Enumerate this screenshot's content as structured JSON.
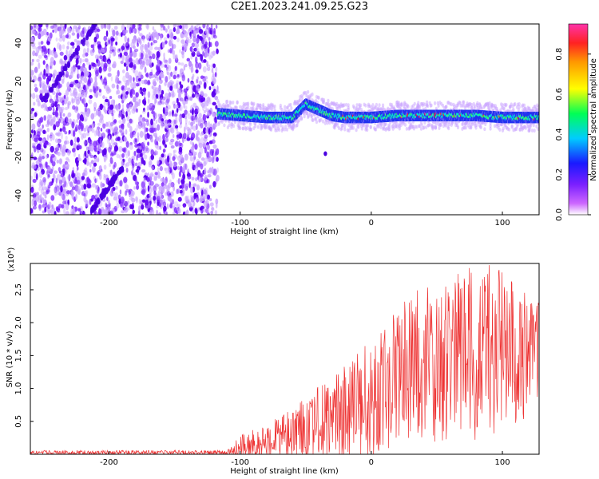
{
  "title": "C2E1.2023.241.09.25.G23",
  "colors": {
    "snr_line": "#ee3333",
    "spectrogram_cloud": "#7a1fff",
    "spectrogram_core": "#2233ee",
    "spectrogram_peak": "#ff2222",
    "axis": "#000000",
    "background": "#ffffff"
  },
  "chart_data": [
    {
      "type": "heatmap",
      "title": "C2E1.2023.241.09.25.G23",
      "xlabel": "Height of straight line (km)",
      "ylabel": "Frequency (Hz)",
      "xlim": [
        -260,
        128
      ],
      "ylim": [
        -50,
        50
      ],
      "x_ticks": [
        -200,
        -100,
        0,
        100
      ],
      "y_ticks": [
        -40,
        -20,
        0,
        20,
        40
      ],
      "colorbar": {
        "label": "Normalized spectral amplitude",
        "range": [
          0,
          0.95
        ],
        "ticks": [
          0.0,
          0.2,
          0.4,
          0.6,
          0.8
        ],
        "colormap": "rainbow (violet-blue-cyan-green-yellow-orange-red-pink)"
      },
      "features": {
        "noise_region_x": [
          -260,
          -117
        ],
        "signal_band_x": [
          -117,
          128
        ],
        "signal_center_frequency_hz": [
          [
            -117,
            3
          ],
          [
            -100,
            2
          ],
          [
            -80,
            1
          ],
          [
            -60,
            1
          ],
          [
            -50,
            8
          ],
          [
            -40,
            5
          ],
          [
            -30,
            2
          ],
          [
            -20,
            1
          ],
          [
            0,
            1
          ],
          [
            20,
            2
          ],
          [
            40,
            2
          ],
          [
            60,
            2
          ],
          [
            80,
            2
          ],
          [
            100,
            1
          ],
          [
            128,
            1
          ]
        ],
        "signal_halfwidth_hz": 3,
        "diagonal_streaks": [
          {
            "x": [
              -250,
              -210
            ],
            "y": [
              10,
              50
            ]
          },
          {
            "x": [
              -215,
              -190
            ],
            "y": [
              -50,
              -25
            ]
          }
        ],
        "isolated_blobs": [
          {
            "x": -35,
            "y": -18
          }
        ]
      }
    },
    {
      "type": "line",
      "xlabel": "Height of straight line (km)",
      "ylabel": "SNR (10 * v/v)",
      "y_scale_label": "(x10⁴)",
      "xlim": [
        -260,
        128
      ],
      "ylim": [
        0,
        2.9
      ],
      "x_ticks": [
        -200,
        -100,
        0,
        100
      ],
      "y_ticks": [
        0.5,
        1.0,
        1.5,
        2.0,
        2.5
      ],
      "series": [
        {
          "envelope_x": [
            -260,
            -110,
            -100,
            -80,
            -60,
            -40,
            -20,
            0,
            20,
            40,
            60,
            80,
            100,
            128
          ],
          "envelope_mean": [
            0.02,
            0.02,
            0.06,
            0.15,
            0.25,
            0.38,
            0.55,
            0.75,
            1.05,
            1.25,
            1.35,
            1.4,
            1.45,
            1.4
          ],
          "envelope_peak": [
            0.06,
            0.06,
            0.3,
            0.45,
            0.7,
            1.05,
            1.35,
            1.8,
            2.2,
            2.65,
            2.85,
            2.9,
            2.85,
            2.3
          ]
        }
      ]
    }
  ]
}
